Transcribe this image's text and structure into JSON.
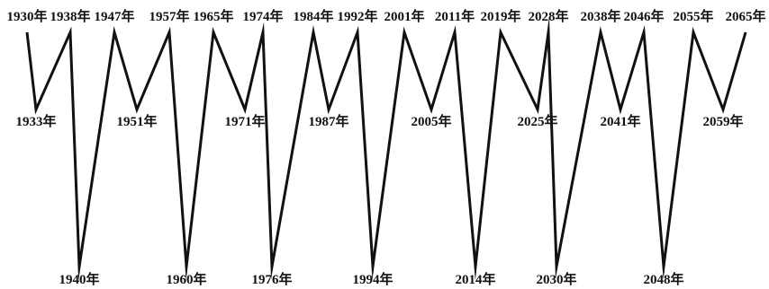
{
  "points": [
    {
      "label": "1930年",
      "level": "top"
    },
    {
      "label": "1933年",
      "level": "middle"
    },
    {
      "label": "1938年",
      "level": "top"
    },
    {
      "label": "1940年",
      "level": "bottom"
    },
    {
      "label": "1947年",
      "level": "top"
    },
    {
      "label": "1951年",
      "level": "middle"
    },
    {
      "label": "1957年",
      "level": "top"
    },
    {
      "label": "1960年",
      "level": "bottom"
    },
    {
      "label": "1965年",
      "level": "top"
    },
    {
      "label": "1971年",
      "level": "middle"
    },
    {
      "label": "1974年",
      "level": "top"
    },
    {
      "label": "1976年",
      "level": "bottom"
    },
    {
      "label": "1984年",
      "level": "top"
    },
    {
      "label": "1987年",
      "level": "middle"
    },
    {
      "label": "1992年",
      "level": "top"
    },
    {
      "label": "1994年",
      "level": "bottom"
    },
    {
      "label": "2001年",
      "level": "top"
    },
    {
      "label": "2005年",
      "level": "middle"
    },
    {
      "label": "2011年",
      "level": "top"
    },
    {
      "label": "2014年",
      "level": "bottom"
    },
    {
      "label": "2019年",
      "level": "top"
    },
    {
      "label": "2025年",
      "level": "middle"
    },
    {
      "label": "2028年",
      "level": "top"
    },
    {
      "label": "2030年",
      "level": "bottom"
    },
    {
      "label": "2038年",
      "level": "top"
    },
    {
      "label": "2041年",
      "level": "middle"
    },
    {
      "label": "2046年",
      "level": "top"
    },
    {
      "label": "2048年",
      "level": "bottom"
    },
    {
      "label": "2055年",
      "level": "top"
    },
    {
      "label": "2059年",
      "level": "middle"
    },
    {
      "label": "2065年",
      "level": "top"
    }
  ]
}
